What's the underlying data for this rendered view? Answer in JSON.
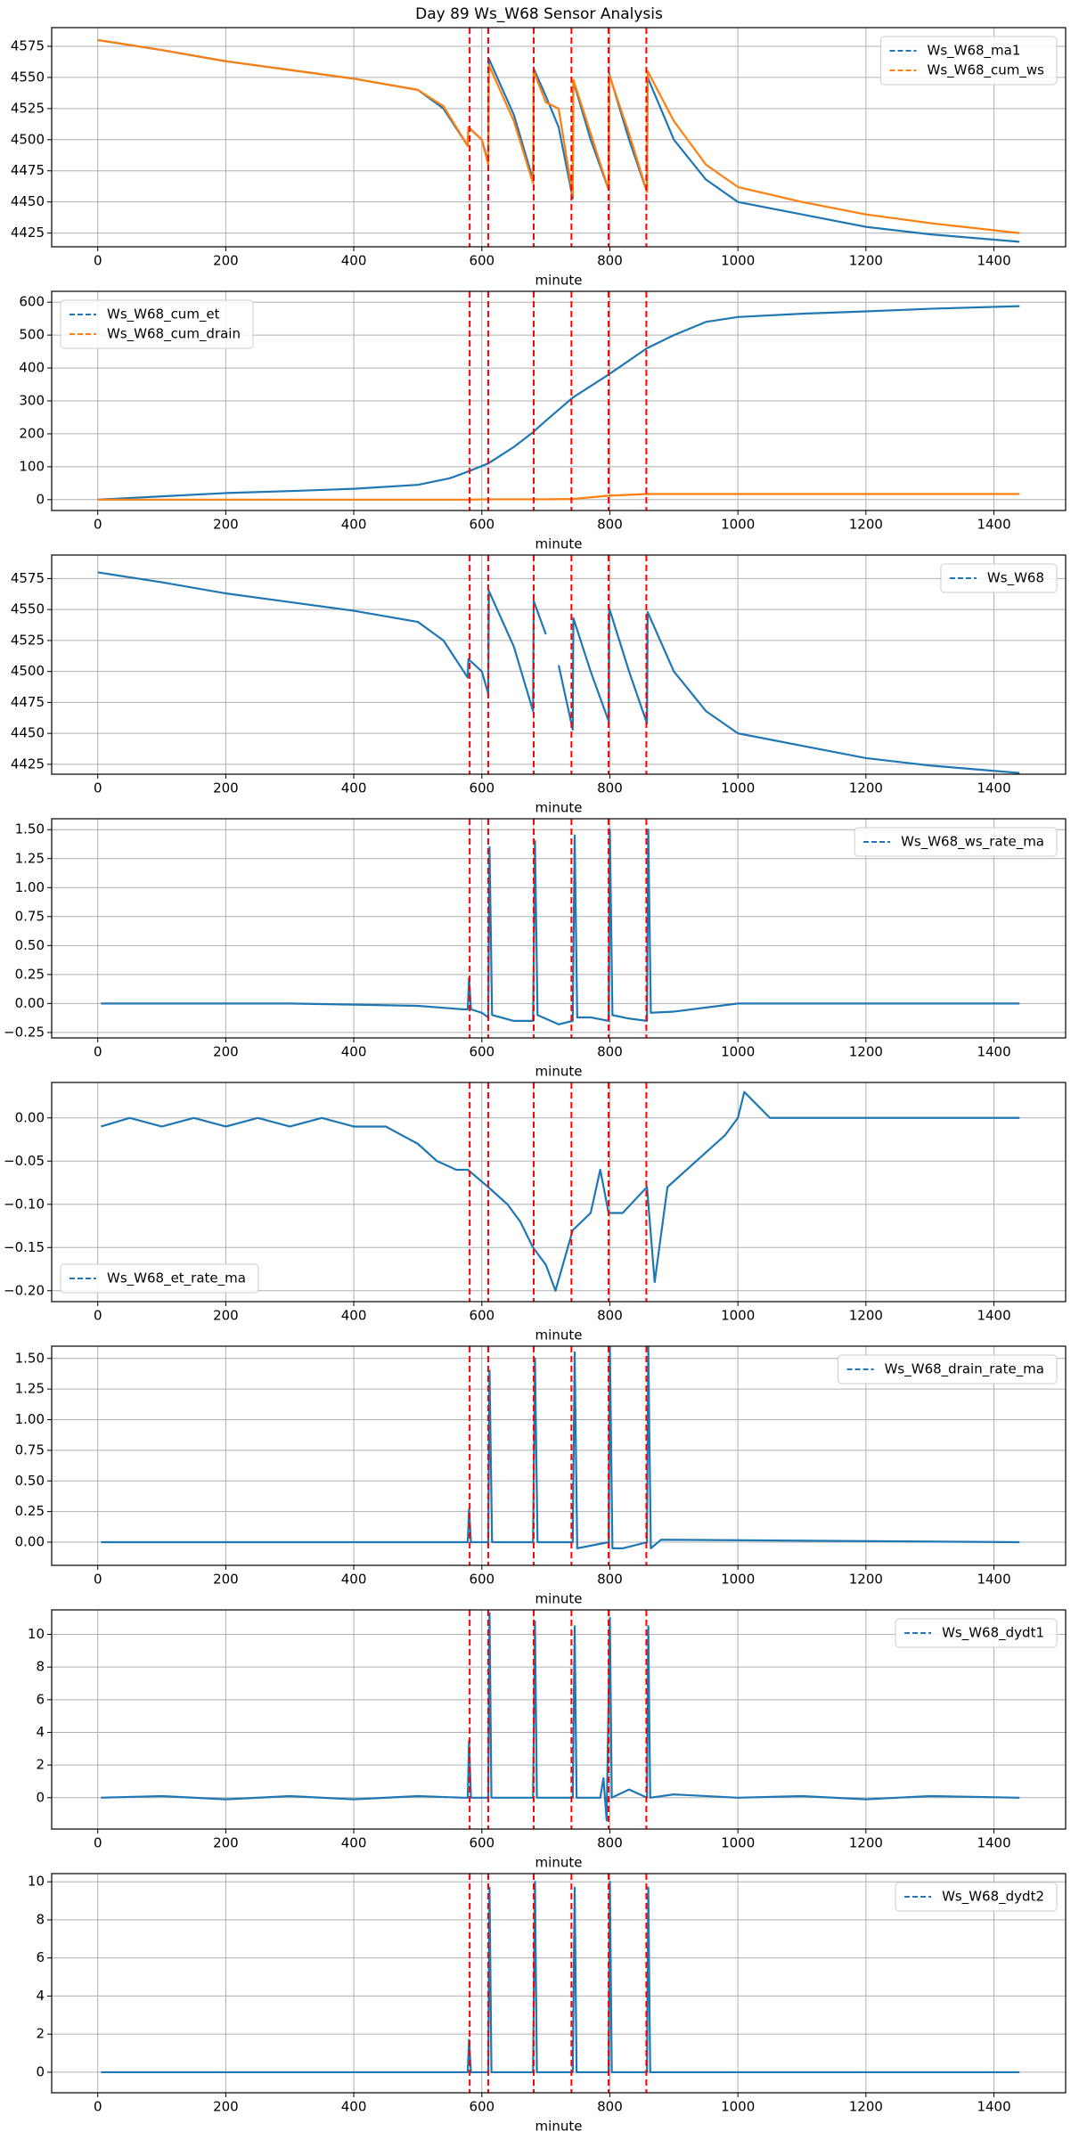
{
  "title": "Day 89 Ws_W68 Sensor Analysis",
  "chart_data": [
    {
      "type": "line",
      "xlabel": "minute",
      "grid": true,
      "legend": "upper right",
      "xlim": [
        -72,
        1512
      ],
      "xticks": [
        0,
        200,
        400,
        600,
        800,
        1000,
        1200,
        1400
      ],
      "ylim": [
        4414,
        4590
      ],
      "yticks": [
        4425,
        4450,
        4475,
        4500,
        4525,
        4550,
        4575
      ],
      "vlines": {
        "color": "#ff0000",
        "x": [
          581,
          610,
          681,
          740,
          798,
          857
        ]
      },
      "x": [
        0,
        100,
        200,
        300,
        400,
        500,
        540,
        578,
        579,
        600,
        610,
        611,
        650,
        680,
        681,
        700,
        720,
        742,
        743,
        770,
        798,
        799,
        830,
        858,
        859,
        900,
        950,
        1000,
        1100,
        1200,
        1300,
        1440
      ],
      "series": [
        {
          "name": "Ws_W68_ma1",
          "color": "#1f77b4",
          "values": [
            4580,
            4572,
            4563,
            4556,
            4549,
            4540,
            4525,
            4495,
            4510,
            4500,
            4482,
            4565,
            4520,
            4468,
            4557,
            4535,
            4510,
            4453,
            4547,
            4500,
            4460,
            4553,
            4500,
            4458,
            4550,
            4500,
            4468,
            4450,
            4440,
            4430,
            4424,
            4418
          ]
        },
        {
          "name": "Ws_W68_cum_ws",
          "color": "#ff7f0e",
          "values": [
            4580,
            4572,
            4563,
            4556,
            4549,
            4540,
            4527,
            4495,
            4510,
            4500,
            4480,
            4560,
            4515,
            4465,
            4555,
            4530,
            4525,
            4455,
            4548,
            4505,
            4460,
            4552,
            4505,
            4458,
            4555,
            4515,
            4480,
            4462,
            4450,
            4440,
            4433,
            4425
          ]
        }
      ]
    },
    {
      "type": "line",
      "xlabel": "minute",
      "grid": true,
      "legend": "upper left",
      "xlim": [
        -72,
        1512
      ],
      "xticks": [
        0,
        200,
        400,
        600,
        800,
        1000,
        1200,
        1400
      ],
      "ylim": [
        -33,
        633
      ],
      "yticks": [
        0,
        100,
        200,
        300,
        400,
        500,
        600
      ],
      "vlines": {
        "color": "#ff0000",
        "x": [
          581,
          610,
          681,
          740,
          798,
          857
        ]
      },
      "x": [
        0,
        100,
        200,
        300,
        400,
        500,
        550,
        578,
        610,
        650,
        680,
        700,
        742,
        798,
        858,
        900,
        950,
        1000,
        1100,
        1200,
        1300,
        1440
      ],
      "series": [
        {
          "name": "Ws_W68_cum_et",
          "color": "#1f77b4",
          "values": [
            0,
            10,
            20,
            26,
            33,
            45,
            65,
            85,
            110,
            160,
            205,
            240,
            310,
            380,
            460,
            500,
            540,
            555,
            565,
            572,
            580,
            588
          ]
        },
        {
          "name": "Ws_W68_cum_drain",
          "color": "#ff7f0e",
          "values": [
            0,
            0,
            0,
            0,
            0,
            0,
            0,
            0,
            1,
            1,
            1,
            1,
            2,
            12,
            17,
            17,
            17,
            17,
            17,
            17,
            17,
            17
          ]
        }
      ]
    },
    {
      "type": "line",
      "xlabel": "minute",
      "grid": true,
      "legend": "upper right",
      "xlim": [
        -72,
        1512
      ],
      "xticks": [
        0,
        200,
        400,
        600,
        800,
        1000,
        1200,
        1400
      ],
      "ylim": [
        4417,
        4594
      ],
      "yticks": [
        4425,
        4450,
        4475,
        4500,
        4525,
        4550,
        4575
      ],
      "vlines": {
        "color": "#ff0000",
        "x": [
          581,
          610,
          681,
          740,
          798,
          857
        ]
      },
      "x": [
        0,
        100,
        200,
        300,
        400,
        500,
        540,
        578,
        579,
        600,
        610,
        611,
        650,
        680,
        681,
        700,
        710,
        720,
        742,
        743,
        770,
        798,
        799,
        830,
        858,
        859,
        900,
        950,
        1000,
        1100,
        1200,
        1300,
        1440
      ],
      "series": [
        {
          "name": "Ws_W68",
          "color": "#1f77b4",
          "values": [
            4580,
            4572,
            4563,
            4556,
            4549,
            4540,
            4525,
            4495,
            4510,
            4500,
            4482,
            4565,
            4520,
            4468,
            4557,
            4530,
            null,
            4505,
            4453,
            4543,
            4500,
            4460,
            4551,
            4500,
            4458,
            4548,
            4500,
            4468,
            4450,
            4440,
            4430,
            4424,
            4418
          ]
        }
      ]
    },
    {
      "type": "line",
      "xlabel": "minute",
      "grid": true,
      "legend": "upper right",
      "xlim": [
        -72,
        1512
      ],
      "xticks": [
        0,
        200,
        400,
        600,
        800,
        1000,
        1200,
        1400
      ],
      "ylim": [
        -0.297,
        1.594
      ],
      "yticks": [
        -0.25,
        0.0,
        0.25,
        0.5,
        0.75,
        1.0,
        1.25,
        1.5
      ],
      "ytick_labels": [
        "−0.25",
        "0.00",
        "0.25",
        "0.50",
        "0.75",
        "1.00",
        "1.25",
        "1.50"
      ],
      "vlines": {
        "color": "#ff0000",
        "x": [
          581,
          610,
          681,
          740,
          798,
          857
        ]
      },
      "x": [
        5,
        100,
        200,
        300,
        400,
        500,
        570,
        578,
        580,
        583,
        600,
        610,
        612,
        616,
        650,
        680,
        683,
        687,
        720,
        742,
        745,
        749,
        770,
        798,
        800,
        804,
        830,
        858,
        860,
        864,
        900,
        1000,
        1100,
        1200,
        1300,
        1440
      ],
      "series": [
        {
          "name": "Ws_W68_ws_rate_ma",
          "color": "#1f77b4",
          "values": [
            0,
            0,
            0,
            0,
            -0.01,
            -0.02,
            -0.05,
            -0.05,
            0.22,
            -0.05,
            -0.08,
            -0.12,
            1.35,
            -0.1,
            -0.15,
            -0.15,
            1.4,
            -0.1,
            -0.18,
            -0.15,
            1.45,
            -0.12,
            -0.12,
            -0.15,
            1.5,
            -0.1,
            -0.13,
            -0.15,
            1.5,
            -0.08,
            -0.07,
            0,
            0,
            0,
            0,
            0
          ]
        }
      ]
    },
    {
      "type": "line",
      "xlabel": "minute",
      "grid": true,
      "legend": "lower left",
      "xlim": [
        -72,
        1512
      ],
      "xticks": [
        0,
        200,
        400,
        600,
        800,
        1000,
        1200,
        1400
      ],
      "ylim": [
        -0.2126,
        0.041
      ],
      "yticks": [
        -0.2,
        -0.15,
        -0.1,
        -0.05,
        0.0
      ],
      "ytick_labels": [
        "−0.20",
        "−0.15",
        "−0.10",
        "−0.05",
        "0.00"
      ],
      "vlines": {
        "color": "#ff0000",
        "x": [
          581,
          610,
          681,
          740,
          798,
          857
        ]
      },
      "x": [
        5,
        50,
        100,
        150,
        200,
        250,
        300,
        350,
        400,
        450,
        500,
        530,
        560,
        578,
        610,
        640,
        660,
        680,
        700,
        715,
        742,
        770,
        785,
        798,
        820,
        858,
        870,
        890,
        920,
        950,
        980,
        1000,
        1010,
        1050,
        1100,
        1200,
        1300,
        1440
      ],
      "series": [
        {
          "name": "Ws_W68_et_rate_ma",
          "color": "#1f77b4",
          "values": [
            -0.01,
            0,
            -0.01,
            0,
            -0.01,
            0,
            -0.01,
            0,
            -0.01,
            -0.01,
            -0.03,
            -0.05,
            -0.06,
            -0.06,
            -0.08,
            -0.1,
            -0.12,
            -0.15,
            -0.17,
            -0.2,
            -0.13,
            -0.11,
            -0.06,
            -0.11,
            -0.11,
            -0.08,
            -0.19,
            -0.08,
            -0.06,
            -0.04,
            -0.02,
            0,
            0.03,
            0,
            0,
            0,
            0,
            0
          ]
        }
      ]
    },
    {
      "type": "line",
      "xlabel": "minute",
      "grid": true,
      "legend": "upper right",
      "xlim": [
        -72,
        1512
      ],
      "xticks": [
        0,
        200,
        400,
        600,
        800,
        1000,
        1200,
        1400
      ],
      "ylim": [
        -0.189,
        1.6
      ],
      "yticks": [
        0.0,
        0.25,
        0.5,
        0.75,
        1.0,
        1.25,
        1.5
      ],
      "ytick_labels": [
        "0.00",
        "0.25",
        "0.50",
        "0.75",
        "1.00",
        "1.25",
        "1.50"
      ],
      "vlines": {
        "color": "#ff0000",
        "x": [
          581,
          610,
          681,
          740,
          798,
          857
        ]
      },
      "x": [
        5,
        570,
        578,
        580,
        583,
        600,
        610,
        612,
        616,
        680,
        683,
        687,
        742,
        745,
        749,
        798,
        800,
        804,
        820,
        858,
        860,
        864,
        880,
        1440
      ],
      "series": [
        {
          "name": "Ws_W68_drain_rate_ma",
          "color": "#1f77b4",
          "values": [
            0,
            0,
            0,
            0.27,
            0,
            0,
            0,
            1.4,
            0,
            0,
            1.5,
            0,
            0,
            1.55,
            -0.05,
            0,
            1.6,
            -0.05,
            -0.05,
            0,
            1.6,
            -0.05,
            0.02,
            0
          ]
        }
      ]
    },
    {
      "type": "line",
      "xlabel": "minute",
      "grid": true,
      "legend": "upper right",
      "xlim": [
        -72,
        1512
      ],
      "xticks": [
        0,
        200,
        400,
        600,
        800,
        1000,
        1200,
        1400
      ],
      "ylim": [
        -1.92,
        11.5
      ],
      "yticks": [
        0,
        2,
        4,
        6,
        8,
        10
      ],
      "vlines": {
        "color": "#ff0000",
        "x": [
          581,
          610,
          681,
          740,
          798,
          857
        ]
      },
      "x": [
        5,
        100,
        200,
        300,
        400,
        500,
        570,
        578,
        580,
        583,
        610,
        612,
        615,
        680,
        683,
        686,
        742,
        745,
        748,
        785,
        790,
        795,
        800,
        803,
        830,
        858,
        860,
        863,
        900,
        1000,
        1100,
        1200,
        1300,
        1440
      ],
      "series": [
        {
          "name": "Ws_W68_dydt1",
          "color": "#1f77b4",
          "values": [
            0,
            0.1,
            -0.1,
            0.1,
            -0.1,
            0.1,
            0,
            0,
            3.5,
            0,
            0,
            11.3,
            0,
            0,
            10.8,
            0,
            0,
            10.5,
            0,
            0,
            1.2,
            -1.4,
            11,
            0,
            0.5,
            0,
            10.5,
            0,
            0.2,
            0,
            0.1,
            -0.1,
            0.1,
            0
          ]
        }
      ]
    },
    {
      "type": "line",
      "xlabel": "minute",
      "grid": true,
      "legend": "upper right",
      "xlim": [
        -72,
        1512
      ],
      "xticks": [
        0,
        200,
        400,
        600,
        800,
        1000,
        1200,
        1400
      ],
      "ylim": [
        -1.08,
        10.43
      ],
      "yticks": [
        0,
        2,
        4,
        6,
        8,
        10
      ],
      "vlines": {
        "color": "#ff0000",
        "x": [
          581,
          610,
          681,
          740,
          798,
          857
        ]
      },
      "x": [
        5,
        200,
        400,
        570,
        578,
        580,
        583,
        610,
        612,
        615,
        680,
        683,
        686,
        742,
        745,
        748,
        798,
        800,
        803,
        858,
        860,
        863,
        1000,
        1200,
        1440
      ],
      "series": [
        {
          "name": "Ws_W68_dydt2",
          "color": "#1f77b4",
          "values": [
            0,
            0,
            0,
            0,
            0,
            1.7,
            0,
            0,
            9.7,
            0,
            0,
            10,
            0,
            0,
            9.7,
            0,
            0,
            10,
            0,
            0,
            9.7,
            0,
            0,
            0,
            0
          ]
        }
      ]
    }
  ]
}
